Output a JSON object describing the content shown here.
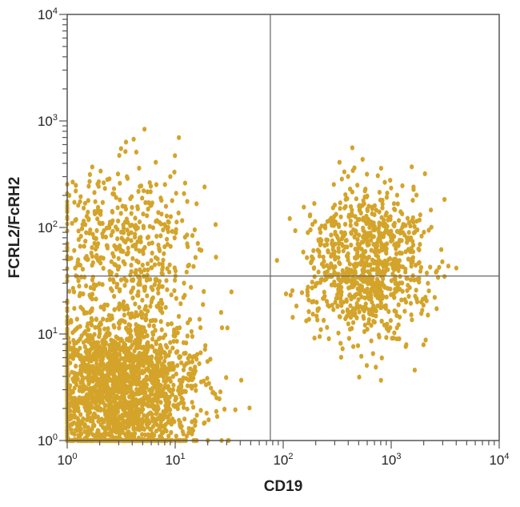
{
  "chart_data": {
    "type": "scatter",
    "xlabel": "CD19",
    "ylabel": "FCRL2/FcRH2",
    "xscale": "log",
    "yscale": "log",
    "xlim": [
      1,
      10000
    ],
    "ylim": [
      1,
      10000
    ],
    "xticks": [
      {
        "base": "10",
        "exp": "0"
      },
      {
        "base": "10",
        "exp": "1"
      },
      {
        "base": "10",
        "exp": "2"
      },
      {
        "base": "10",
        "exp": "3"
      },
      {
        "base": "10",
        "exp": "4"
      }
    ],
    "yticks": [
      {
        "base": "10",
        "exp": "0"
      },
      {
        "base": "10",
        "exp": "1"
      },
      {
        "base": "10",
        "exp": "2"
      },
      {
        "base": "10",
        "exp": "3"
      },
      {
        "base": "10",
        "exp": "4"
      }
    ],
    "quadrant_gates": {
      "x": 76,
      "y": 35
    },
    "grid": false,
    "legend": "none",
    "point_color": "#D4A42A",
    "populations": [
      {
        "quadrant": "lower-left",
        "center": [
          3,
          3
        ],
        "log_sd": [
          0.35,
          0.4
        ],
        "approx_events": 2200
      },
      {
        "quadrant": "upper-left",
        "center": [
          3.5,
          70
        ],
        "log_sd": [
          0.35,
          0.35
        ],
        "approx_events": 450
      },
      {
        "quadrant": "right",
        "center": [
          600,
          45
        ],
        "log_sd": [
          0.28,
          0.35
        ],
        "approx_events": 900
      }
    ]
  }
}
